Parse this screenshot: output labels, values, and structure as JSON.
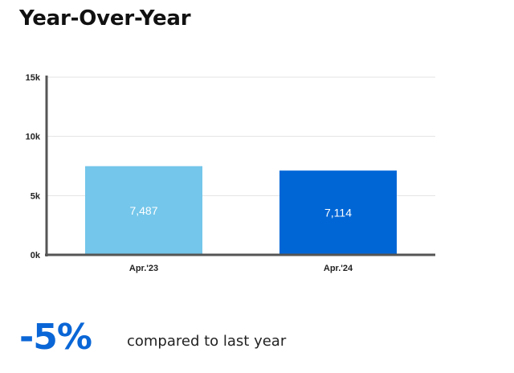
{
  "header": {
    "title": "Year-Over-Year"
  },
  "summary": {
    "change": "-5%",
    "caption": "compared to last year",
    "change_color": "#0a66d6"
  },
  "chart_data": {
    "type": "bar",
    "title": "",
    "xlabel": "",
    "ylabel": "",
    "categories": [
      "Apr.'23",
      "Apr.'24"
    ],
    "values": [
      7487,
      7114
    ],
    "value_labels": [
      "7,487",
      "7,114"
    ],
    "colors": [
      "#74c6ea",
      "#0066d6"
    ],
    "ylim": [
      0,
      15000
    ],
    "yticks": [
      0,
      5000,
      10000,
      15000
    ],
    "ytick_labels": [
      "0k",
      "5k",
      "10k",
      "15k"
    ],
    "grid": true,
    "legend": "none"
  }
}
